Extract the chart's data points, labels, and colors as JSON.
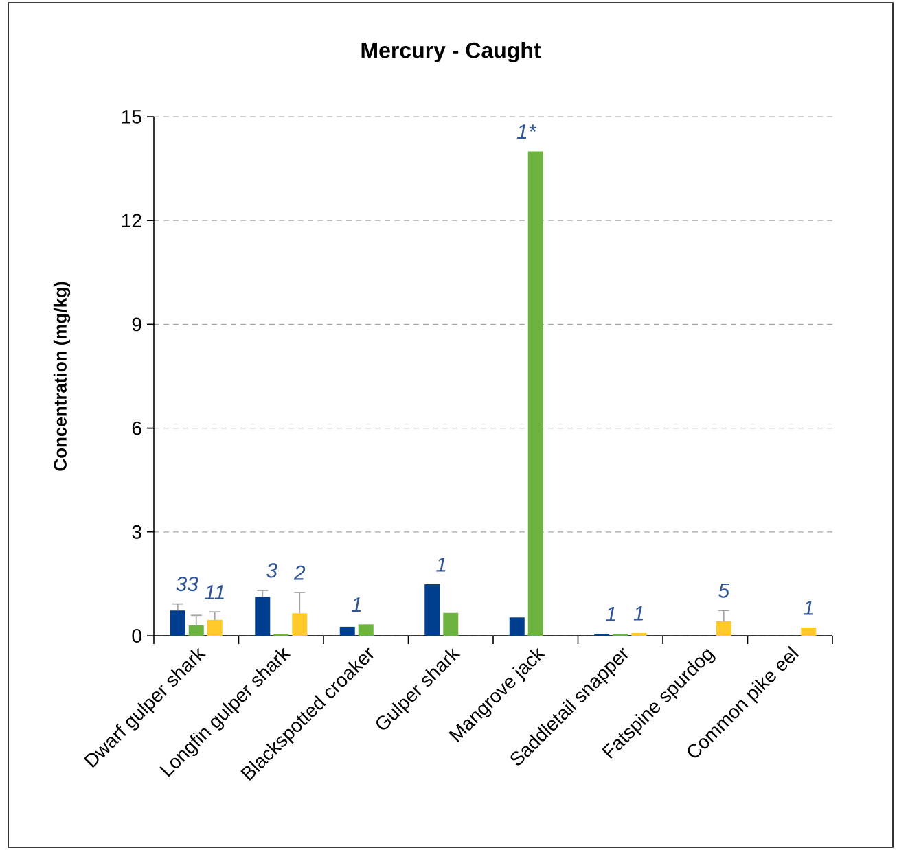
{
  "chart_data": {
    "type": "bar",
    "title": "Mercury - Caught",
    "ylabel": "Concentration (mg/kg)",
    "categories": [
      "Dwarf gulper shark",
      "Longfin gulper shark",
      "Blackspotted croaker",
      "Gulper shark",
      "Mangrove jack",
      "Saddletail snapper",
      "Fatspine spurdog",
      "Common pike eel"
    ],
    "series": [
      {
        "color": "#003f8f",
        "values": [
          0.73,
          1.12,
          0.26,
          1.49,
          0.53,
          0.06,
          null,
          null
        ],
        "errors": [
          [
            0.73,
            0.92
          ],
          [
            1.12,
            1.31
          ],
          null,
          null,
          null,
          null,
          null,
          null
        ]
      },
      {
        "color": "#6db33f",
        "values": [
          0.3,
          0.05,
          0.33,
          0.66,
          14.0,
          0.06,
          null,
          null
        ],
        "errors": [
          [
            0.3,
            0.59
          ],
          null,
          null,
          null,
          null,
          null,
          null,
          null
        ]
      },
      {
        "color": "#ffc929",
        "values": [
          0.46,
          0.65,
          null,
          null,
          null,
          0.08,
          0.42,
          0.24
        ],
        "errors": [
          [
            0.46,
            0.69
          ],
          [
            0.65,
            1.25
          ],
          null,
          null,
          null,
          null,
          [
            0.42,
            0.73
          ],
          null
        ]
      }
    ],
    "annotations": [
      "33",
      "11",
      "3",
      "2",
      "1",
      "1",
      "1*",
      "1",
      "1",
      "5",
      "1"
    ],
    "ylim": [
      0,
      15
    ],
    "yticks": [
      0,
      3,
      6,
      9,
      12,
      15
    ],
    "grid": "y"
  }
}
